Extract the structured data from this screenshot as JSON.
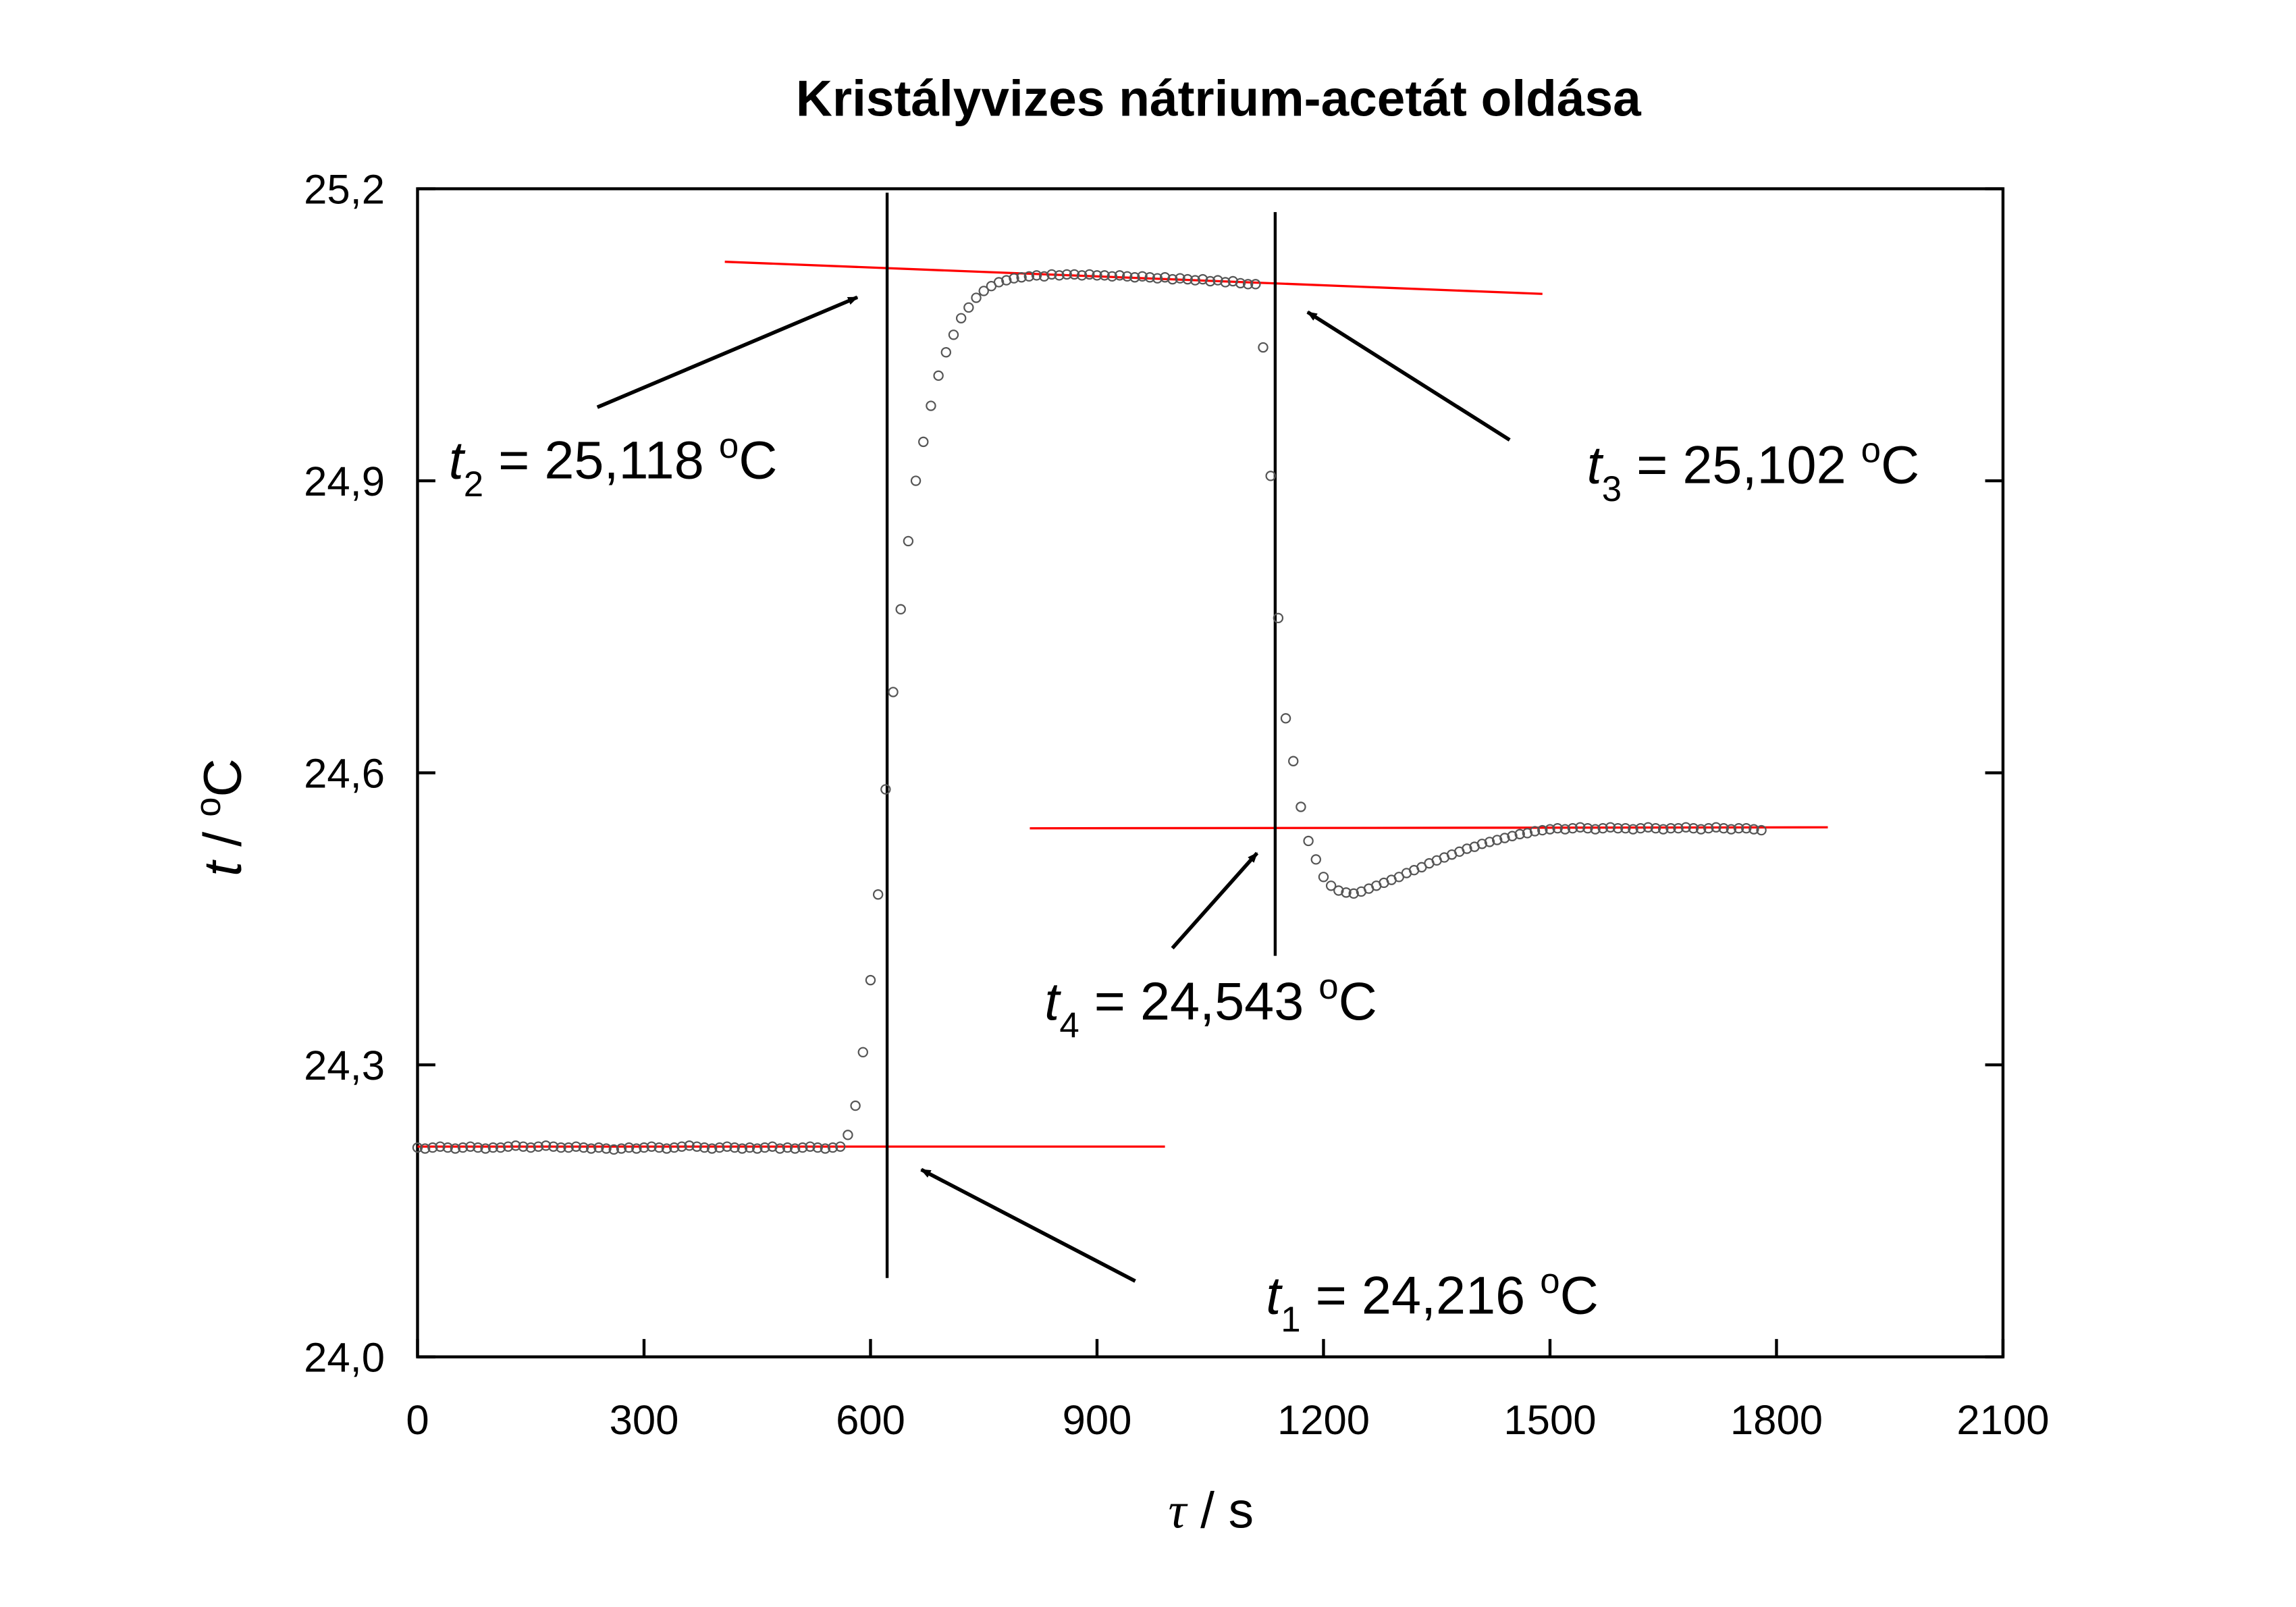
{
  "chart_data": {
    "type": "scatter",
    "title": "Kristályvizes nátrium-acetát oldása",
    "x_label": {
      "symbol": "τ",
      "text": " / s"
    },
    "y_label": {
      "symbol": "t",
      "text": " / ",
      "degree": "o",
      "unit": "C"
    },
    "xlim": [
      0,
      2100
    ],
    "xticks": [
      0,
      300,
      600,
      900,
      1200,
      1500,
      1800,
      2100
    ],
    "ylim": [
      24.0,
      25.2
    ],
    "yticks": [
      {
        "value": 24.0,
        "label": "24,0"
      },
      {
        "value": 24.3,
        "label": "24,3"
      },
      {
        "value": 24.6,
        "label": "24,6"
      },
      {
        "value": 24.9,
        "label": "24,9"
      },
      {
        "value": 25.2,
        "label": "25,2"
      }
    ],
    "marker_color": "#555555",
    "x": [
      0,
      10,
      20,
      30,
      40,
      50,
      60,
      70,
      80,
      90,
      100,
      110,
      120,
      130,
      140,
      150,
      160,
      170,
      180,
      190,
      200,
      210,
      220,
      230,
      240,
      250,
      260,
      270,
      280,
      290,
      300,
      310,
      320,
      330,
      340,
      350,
      360,
      370,
      380,
      390,
      400,
      410,
      420,
      430,
      440,
      450,
      460,
      470,
      480,
      490,
      500,
      510,
      520,
      530,
      540,
      550,
      560,
      570,
      580,
      590,
      600,
      610,
      620,
      630,
      640,
      650,
      660,
      670,
      680,
      690,
      700,
      710,
      720,
      730,
      740,
      750,
      760,
      770,
      780,
      790,
      800,
      810,
      820,
      830,
      840,
      850,
      860,
      870,
      880,
      890,
      900,
      910,
      920,
      930,
      940,
      950,
      960,
      970,
      980,
      990,
      1000,
      1010,
      1020,
      1030,
      1040,
      1050,
      1060,
      1070,
      1080,
      1090,
      1100,
      1110,
      1120,
      1130,
      1140,
      1150,
      1160,
      1170,
      1180,
      1190,
      1200,
      1210,
      1220,
      1230,
      1240,
      1250,
      1260,
      1270,
      1280,
      1290,
      1300,
      1310,
      1320,
      1330,
      1340,
      1350,
      1360,
      1370,
      1380,
      1390,
      1400,
      1410,
      1420,
      1430,
      1440,
      1450,
      1460,
      1470,
      1480,
      1490,
      1500,
      1510,
      1520,
      1530,
      1540,
      1550,
      1560,
      1570,
      1580,
      1590,
      1600,
      1610,
      1620,
      1630,
      1640,
      1650,
      1660,
      1670,
      1680,
      1690,
      1700,
      1710,
      1720,
      1730,
      1740,
      1750,
      1760,
      1770,
      1780
    ],
    "values": [
      24.215,
      24.214,
      24.215,
      24.216,
      24.215,
      24.214,
      24.215,
      24.216,
      24.215,
      24.214,
      24.215,
      24.215,
      24.216,
      24.217,
      24.216,
      24.215,
      24.216,
      24.217,
      24.216,
      24.215,
      24.215,
      24.216,
      24.215,
      24.214,
      24.215,
      24.214,
      24.213,
      24.214,
      24.215,
      24.214,
      24.215,
      24.216,
      24.215,
      24.214,
      24.215,
      24.216,
      24.217,
      24.216,
      24.215,
      24.214,
      24.215,
      24.216,
      24.215,
      24.214,
      24.215,
      24.214,
      24.215,
      24.216,
      24.214,
      24.215,
      24.214,
      24.215,
      24.216,
      24.215,
      24.214,
      24.215,
      24.216,
      24.228,
      24.258,
      24.313,
      24.387,
      24.475,
      24.583,
      24.683,
      24.768,
      24.838,
      24.9,
      24.94,
      24.977,
      25.008,
      25.032,
      25.05,
      25.067,
      25.078,
      25.088,
      25.095,
      25.1,
      25.104,
      25.106,
      25.108,
      25.109,
      25.11,
      25.111,
      25.11,
      25.112,
      25.111,
      25.112,
      25.112,
      25.111,
      25.112,
      25.111,
      25.111,
      25.11,
      25.111,
      25.11,
      25.109,
      25.11,
      25.109,
      25.108,
      25.109,
      25.107,
      25.108,
      25.107,
      25.106,
      25.107,
      25.105,
      25.106,
      25.104,
      25.105,
      25.103,
      25.102,
      25.102,
      25.037,
      24.905,
      24.759,
      24.656,
      24.612,
      24.565,
      24.53,
      24.511,
      24.493,
      24.484,
      24.479,
      24.477,
      24.476,
      24.478,
      24.481,
      24.484,
      24.487,
      24.49,
      24.493,
      24.497,
      24.5,
      24.503,
      24.507,
      24.51,
      24.513,
      24.516,
      24.519,
      24.522,
      24.524,
      24.527,
      24.529,
      24.531,
      24.533,
      24.535,
      24.537,
      24.538,
      24.54,
      24.541,
      24.542,
      24.543,
      24.542,
      24.543,
      24.544,
      24.543,
      24.542,
      24.543,
      24.544,
      24.543,
      24.543,
      24.542,
      24.543,
      24.544,
      24.543,
      24.542,
      24.543,
      24.543,
      24.544,
      24.543,
      24.542,
      24.543,
      24.544,
      24.543,
      24.542,
      24.543,
      24.543,
      24.542,
      24.541
    ],
    "fit_lines": [
      {
        "color": "#ff0000",
        "x": [
          0,
          990
        ],
        "values": [
          24.216,
          24.216
        ]
      },
      {
        "color": "#ff0000",
        "x": [
          407,
          1490
        ],
        "values": [
          25.125,
          25.092
        ]
      },
      {
        "color": "#ff0000",
        "x": [
          811,
          1868
        ],
        "values": [
          24.543,
          24.544
        ]
      }
    ],
    "vertical_lines": [
      {
        "color": "#000000",
        "x": [
          622,
          622
        ],
        "values": [
          24.081,
          25.196
        ]
      },
      {
        "color": "#000000",
        "x": [
          1136,
          1136
        ],
        "values": [
          24.412,
          25.176
        ]
      }
    ],
    "annotations": [
      {
        "symbol": "t",
        "subscript": "2",
        "text": " = 25,118 ",
        "degree": "o",
        "unit": "C"
      },
      {
        "symbol": "t",
        "subscript": "3",
        "text": " = 25,102 ",
        "degree": "o",
        "unit": "C"
      },
      {
        "symbol": "t",
        "subscript": "4",
        "text": " = 24,543 ",
        "degree": "o",
        "unit": "C"
      },
      {
        "symbol": "t",
        "subscript": "1",
        "text": " = 24,216 ",
        "degree": "o",
        "unit": "C"
      }
    ]
  }
}
